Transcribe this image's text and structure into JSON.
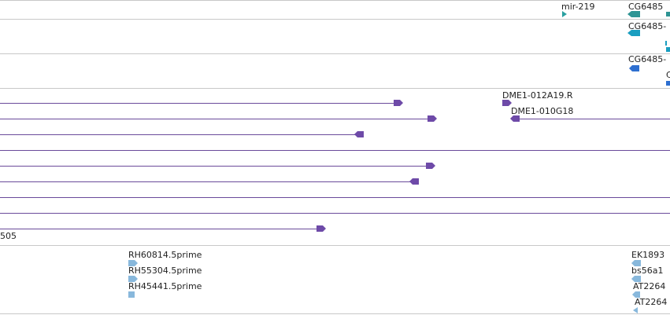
{
  "colors": {
    "separator": "#c8c8c8",
    "mirna": "#2aa0a0",
    "transcript_teal": "#2f9494",
    "transcript_cyan": "#1a9ec0",
    "protein_blue": "#2e6fd0",
    "clone_purple": "#6e4aa8",
    "clone_line": "#6a4a9a",
    "est_lightblue": "#88b8dc"
  },
  "tracks": {
    "mirna": {
      "label": "mir-219"
    },
    "transcripts": [
      {
        "label": "CG6485",
        "kind": "teal"
      },
      {
        "label": "CG6485-",
        "kind": "cyan"
      },
      {
        "label": "CG6485-",
        "kind": "blue"
      },
      {
        "label": "C",
        "kind": "blue"
      }
    ],
    "clones": {
      "labels": [
        "DME1-012A19.R",
        "DME1-010G18",
        "505"
      ]
    },
    "ests": {
      "left_labels": [
        "RH60814.5prime",
        "RH55304.5prime",
        "RH45441.5prime"
      ],
      "right_labels": [
        "EK1893",
        "bs56a1",
        "AT2264",
        "AT2264"
      ]
    }
  }
}
